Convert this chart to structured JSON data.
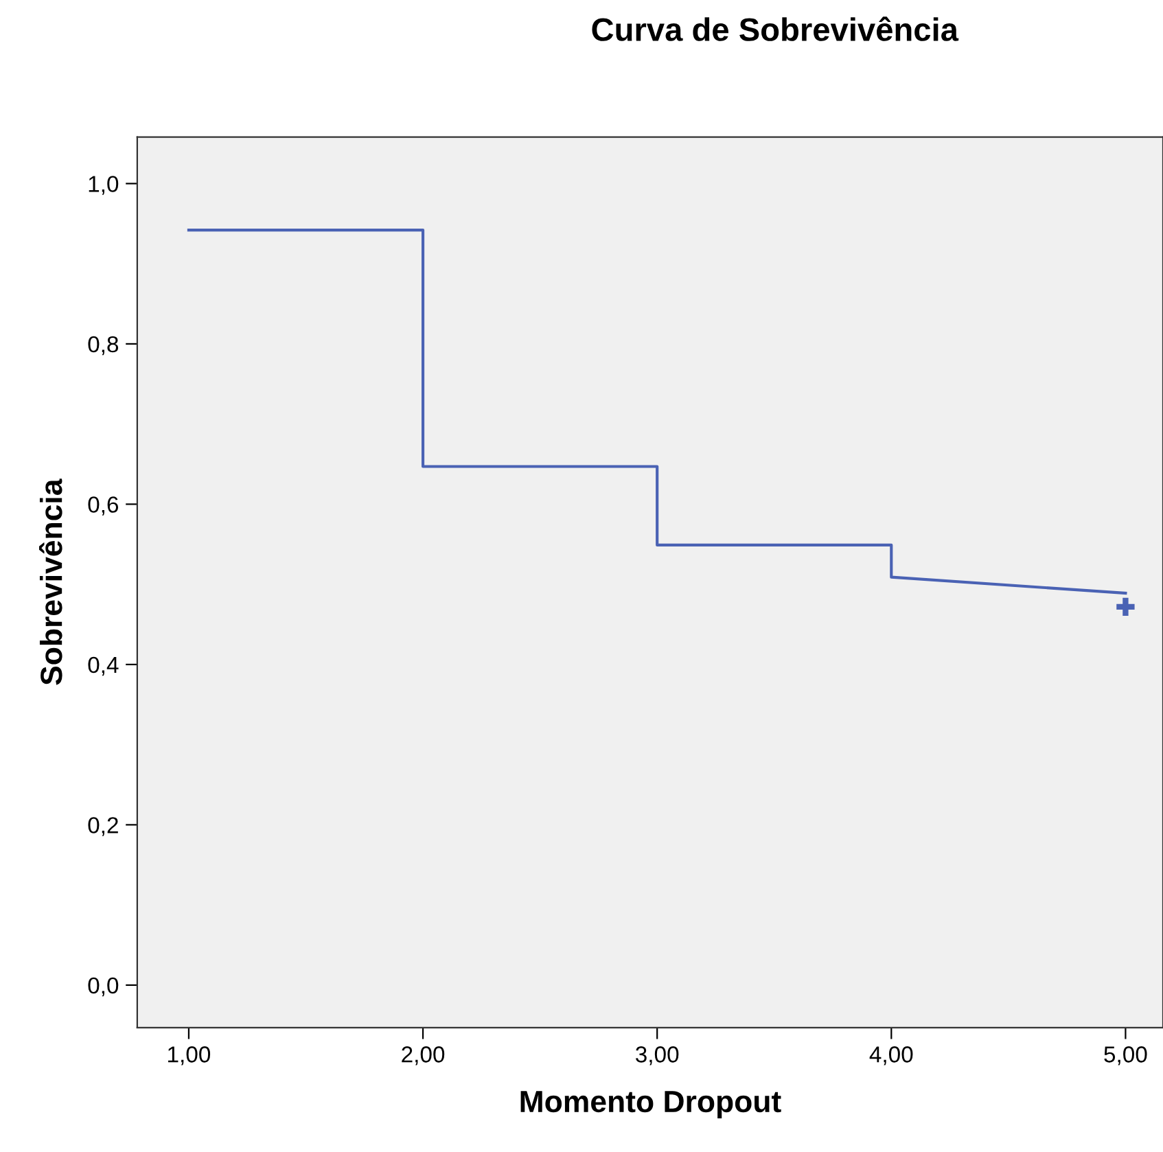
{
  "chart_data": {
    "type": "line",
    "title": "Curva de Sobrevivência",
    "xlabel": "Momento Dropout",
    "ylabel": "Sobrevivência",
    "series": [
      {
        "color": "#4a62b4",
        "x": [
          1,
          2,
          2,
          3,
          3,
          4,
          4,
          5
        ],
        "values": [
          0.942,
          0.942,
          0.647,
          0.647,
          0.549,
          0.549,
          0.509,
          0.489
        ]
      },
      {
        "type": "scatter",
        "color": "#4a62b4",
        "marker": "cross",
        "x": [
          5
        ],
        "values": [
          0.472
        ]
      }
    ],
    "xlim": [
      0.78,
      5.16
    ],
    "ylim": [
      -0.053,
      1.058
    ],
    "xticks": [
      {
        "value": 1,
        "label": "1,00"
      },
      {
        "value": 2,
        "label": "2,00"
      },
      {
        "value": 3,
        "label": "3,00"
      },
      {
        "value": 4,
        "label": "4,00"
      },
      {
        "value": 5,
        "label": "5,00"
      }
    ],
    "yticks": [
      {
        "value": 0,
        "label": "0,0"
      },
      {
        "value": 0.2,
        "label": "0,2"
      },
      {
        "value": 0.4,
        "label": "0,4"
      },
      {
        "value": 0.6,
        "label": "0,6"
      },
      {
        "value": 0.8,
        "label": "0,8"
      },
      {
        "value": 1,
        "label": "1,0"
      }
    ],
    "grid": false
  }
}
